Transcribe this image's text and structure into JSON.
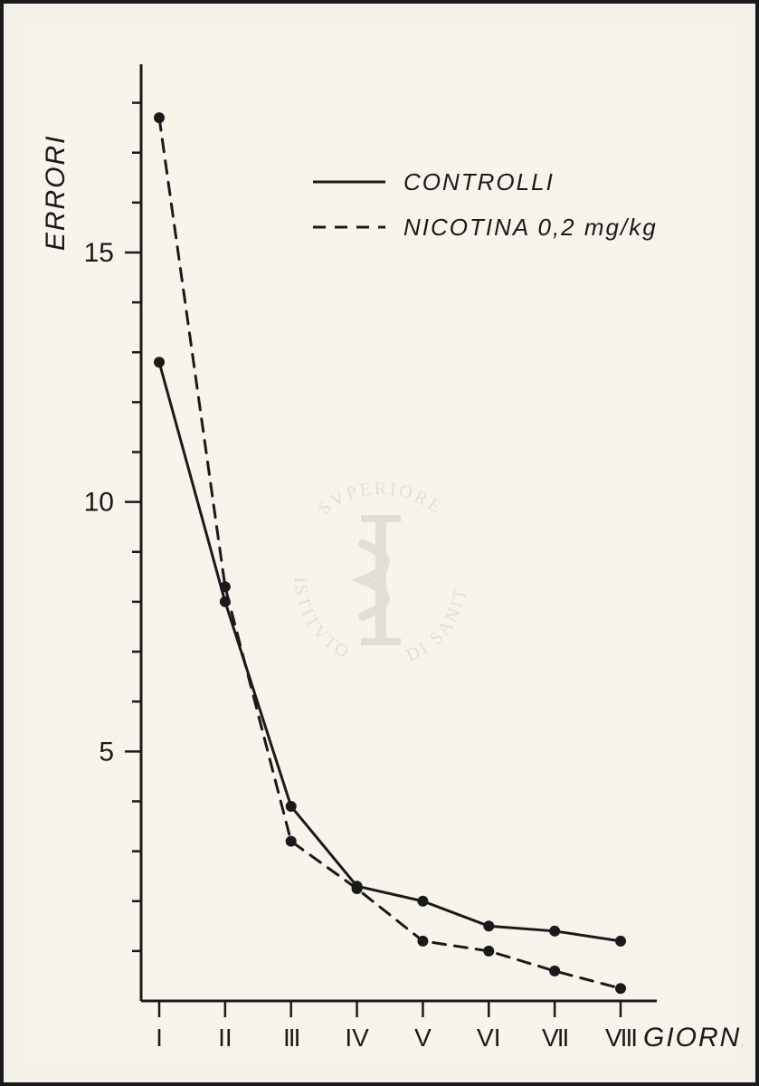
{
  "chart": {
    "type": "line",
    "background_color": "#f4f1e8",
    "paper_color": "#f7f4ec",
    "frame_border_color": "#1a1a1a",
    "axis_color": "#1a1a1a",
    "text_color": "#1a1a1a",
    "line_width": 3,
    "marker_radius": 6,
    "marker_fill": "#1a1a1a",
    "y_axis": {
      "label": "ERRORI",
      "major_ticks": [
        5,
        10,
        15
      ],
      "minor_tick_step": 1,
      "ylim": [
        0,
        18.5
      ],
      "label_fontsize": 30,
      "tick_fontsize": 30,
      "major_tick_len": 18,
      "minor_tick_len": 10
    },
    "x_axis": {
      "label": "GIORNI",
      "categories": [
        "I",
        "II",
        "III",
        "IV",
        "V",
        "VI",
        "VII",
        "VIII"
      ],
      "label_fontsize": 30,
      "tick_fontsize": 28,
      "tick_len": 18
    },
    "legend": {
      "fontsize": 26,
      "line_length": 80,
      "items": [
        {
          "label": "CONTROLLI",
          "style": "solid"
        },
        {
          "label": "NICOTINA 0,2 mg/kg",
          "style": "dashed"
        }
      ]
    },
    "series": [
      {
        "name": "CONTROLLI",
        "style": "solid",
        "dash": "none",
        "color": "#1a1a1a",
        "values": [
          12.8,
          8.0,
          3.9,
          2.3,
          2.0,
          1.5,
          1.4,
          1.2
        ]
      },
      {
        "name": "NICOTINA 0,2 mg/kg",
        "style": "dashed",
        "dash": "14 10",
        "color": "#1a1a1a",
        "values": [
          17.7,
          8.3,
          3.2,
          2.25,
          1.2,
          1.0,
          0.6,
          0.25
        ]
      }
    ],
    "watermark": {
      "text_top": "SVPERIORE",
      "text_left": "ISTITVTO",
      "text_right": "DI SANITÀ",
      "color": "#d9d6cd",
      "fontsize": 20
    }
  }
}
